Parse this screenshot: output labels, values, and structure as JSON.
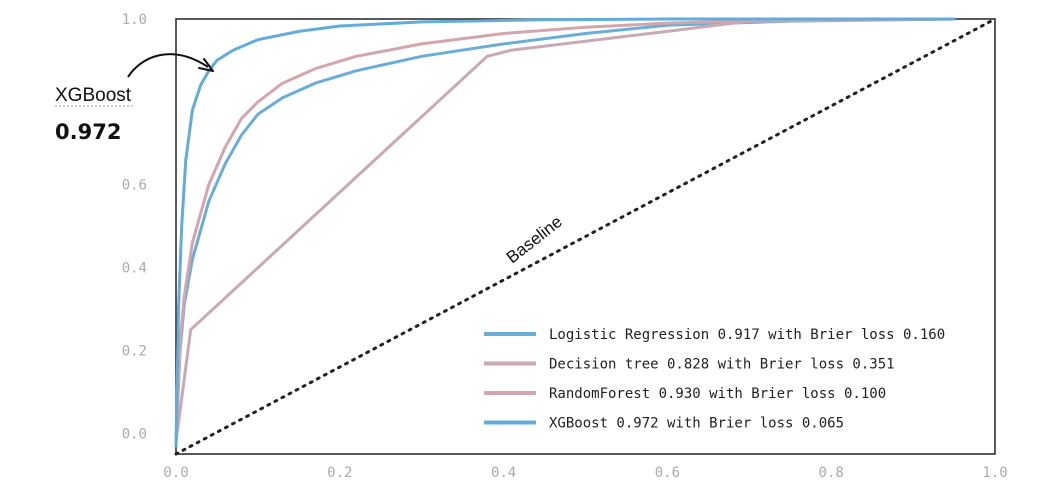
{
  "chart_data": {
    "type": "line",
    "xlim": [
      0.0,
      1.0
    ],
    "ylim": [
      -0.05,
      1.0
    ],
    "x_ticks": [
      "0.0",
      "0.2",
      "0.4",
      "0.6",
      "0.8",
      "1.0"
    ],
    "x_tick_values": [
      0.0,
      0.2,
      0.4,
      0.6,
      0.8,
      1.0
    ],
    "y_ticks": [
      "0.0",
      "0.2",
      "0.4",
      "0.6",
      "1.0"
    ],
    "y_tick_values": [
      0.0,
      0.2,
      0.4,
      0.6,
      1.0
    ],
    "grid": false,
    "legend_placement": "bottom-right",
    "series": [
      {
        "name": "Logistic Regression 0.917 with Brier loss 0.160",
        "color": "#6aaed6",
        "x": [
          0.0,
          0.005,
          0.01,
          0.02,
          0.04,
          0.06,
          0.08,
          0.1,
          0.13,
          0.17,
          0.22,
          0.3,
          0.4,
          0.5,
          0.6,
          0.75,
          0.95
        ],
        "y": [
          -0.02,
          0.2,
          0.31,
          0.42,
          0.56,
          0.65,
          0.72,
          0.77,
          0.81,
          0.845,
          0.875,
          0.91,
          0.94,
          0.965,
          0.985,
          0.995,
          1.0
        ]
      },
      {
        "name": "Decision tree 0.828 with Brier loss 0.351",
        "color": "#c9a9b4",
        "x": [
          0.0,
          0.018,
          0.38,
          0.41,
          0.6,
          0.7,
          0.95
        ],
        "y": [
          -0.02,
          0.25,
          0.91,
          0.925,
          0.97,
          0.995,
          1.0
        ]
      },
      {
        "name": "RandomForest 0.930 with Brier loss 0.100",
        "color": "#d3a5ae",
        "x": [
          0.0,
          0.005,
          0.01,
          0.02,
          0.04,
          0.06,
          0.08,
          0.1,
          0.13,
          0.17,
          0.22,
          0.3,
          0.4,
          0.5,
          0.6,
          0.75,
          0.95
        ],
        "y": [
          -0.02,
          0.22,
          0.33,
          0.46,
          0.6,
          0.69,
          0.76,
          0.8,
          0.845,
          0.88,
          0.91,
          0.94,
          0.965,
          0.98,
          0.99,
          0.998,
          1.0
        ]
      },
      {
        "name": "XGBoost 0.972 with Brier loss 0.065",
        "color": "#63acd9",
        "x": [
          0.0,
          0.003,
          0.007,
          0.012,
          0.02,
          0.03,
          0.04,
          0.05,
          0.07,
          0.1,
          0.15,
          0.2,
          0.3,
          0.45,
          0.6,
          0.8,
          0.95
        ],
        "y": [
          -0.03,
          0.3,
          0.5,
          0.66,
          0.78,
          0.84,
          0.875,
          0.9,
          0.925,
          0.95,
          0.97,
          0.983,
          0.993,
          0.998,
          1.0,
          1.0,
          1.0
        ]
      }
    ],
    "baseline": {
      "label": "Baseline",
      "x": [
        0.0,
        1.0
      ],
      "y": [
        -0.05,
        1.0
      ]
    },
    "annotation": {
      "label": "XGBoost",
      "value": "0.972"
    }
  }
}
